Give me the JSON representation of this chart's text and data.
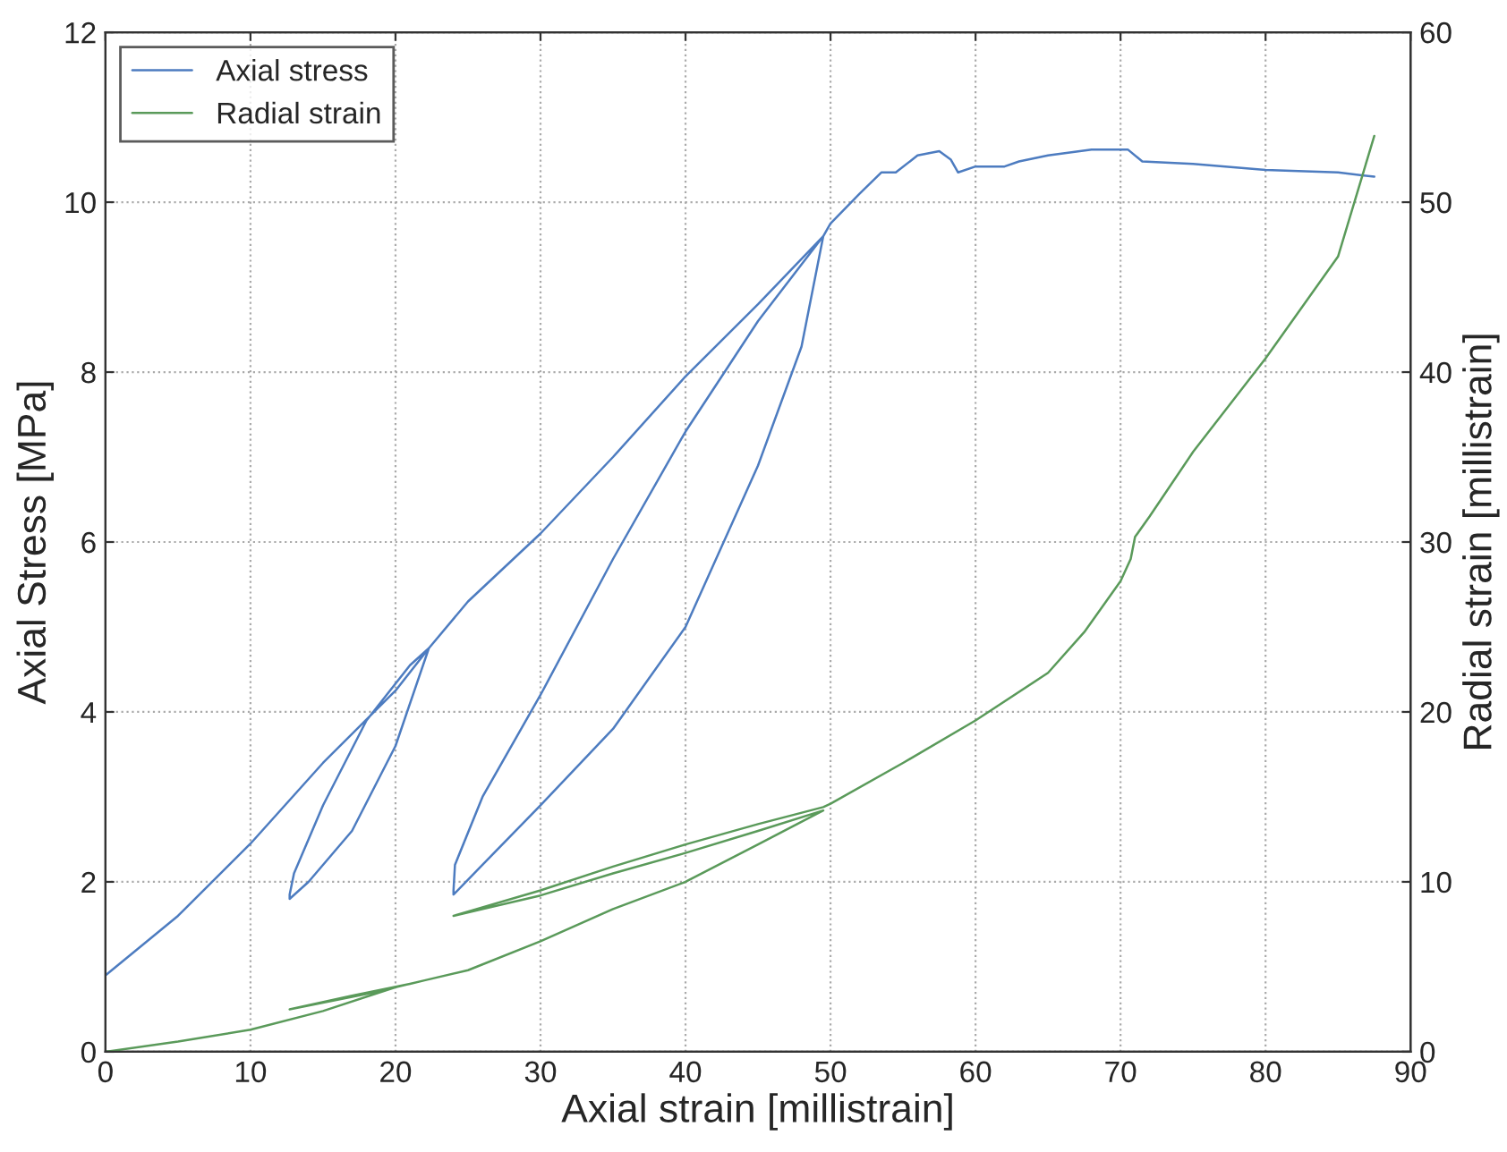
{
  "chart_data": {
    "type": "line",
    "xlabel": "Axial strain [millistrain]",
    "ylabel": "Axial Stress [MPa]",
    "y2label": "Radial strain [millistrain]",
    "series": [
      {
        "name": "Axial stress",
        "color": "#4d7cc0",
        "x": [
          0,
          5,
          10,
          15,
          20,
          22.3,
          20,
          17,
          14,
          12.7,
          12.7,
          13,
          15,
          18,
          21,
          22.3,
          25,
          30,
          35,
          40,
          45,
          49.5,
          48,
          45,
          40,
          35,
          30,
          26,
          24,
          24,
          24.1,
          26,
          30,
          35,
          40,
          45,
          49.5,
          50,
          52,
          53.5,
          54.5,
          56,
          57.5,
          58.3,
          58.8,
          60,
          62,
          63,
          65,
          68,
          70.5,
          71.5,
          75,
          80,
          85,
          87.5
        ],
        "values": [
          0.9,
          1.6,
          2.45,
          3.4,
          4.25,
          4.75,
          3.6,
          2.6,
          2.0,
          1.8,
          1.85,
          2.1,
          2.9,
          3.9,
          4.55,
          4.75,
          5.3,
          6.1,
          7.0,
          7.95,
          8.8,
          9.6,
          8.3,
          6.9,
          5.0,
          3.8,
          2.9,
          2.2,
          1.85,
          1.9,
          2.2,
          3.0,
          4.2,
          5.8,
          7.3,
          8.6,
          9.6,
          9.75,
          10.1,
          10.35,
          10.35,
          10.55,
          10.6,
          10.5,
          10.35,
          10.42,
          10.42,
          10.48,
          10.55,
          10.62,
          10.62,
          10.48,
          10.45,
          10.38,
          10.35,
          10.3
        ]
      },
      {
        "name": "Radial strain",
        "color": "#5a9a5a",
        "axis": "y2",
        "x": [
          0,
          5,
          10,
          15,
          20,
          22,
          18,
          12.7,
          12.7,
          17,
          21,
          22,
          25,
          30,
          35,
          40,
          45,
          49.5,
          45,
          40,
          35,
          30,
          24,
          24,
          30,
          35,
          40,
          45,
          49.5,
          50,
          55,
          60,
          65,
          67.5,
          70,
          70.7,
          71,
          72,
          75,
          80,
          85,
          87.5
        ],
        "values": [
          0,
          0.6,
          1.3,
          2.4,
          3.8,
          4.2,
          3.4,
          2.5,
          2.5,
          3.3,
          4.0,
          4.2,
          4.8,
          6.5,
          8.4,
          10.0,
          12.2,
          14.2,
          13.0,
          11.7,
          10.5,
          9.2,
          8.0,
          8.0,
          9.5,
          10.9,
          12.2,
          13.4,
          14.4,
          14.6,
          17,
          19.5,
          22.3,
          24.7,
          27.7,
          29,
          30.3,
          31.5,
          35.3,
          40.8,
          46.8,
          53.9
        ]
      }
    ],
    "xlim": [
      0,
      90
    ],
    "xticks": [
      0,
      10,
      20,
      30,
      40,
      50,
      60,
      70,
      80,
      90
    ],
    "ylim": [
      0,
      12
    ],
    "yticks": [
      0,
      2,
      4,
      6,
      8,
      10,
      12
    ],
    "y2lim": [
      0,
      60
    ],
    "y2ticks": [
      0,
      10,
      20,
      30,
      40,
      50,
      60
    ],
    "grid": true,
    "legend": "top left"
  }
}
